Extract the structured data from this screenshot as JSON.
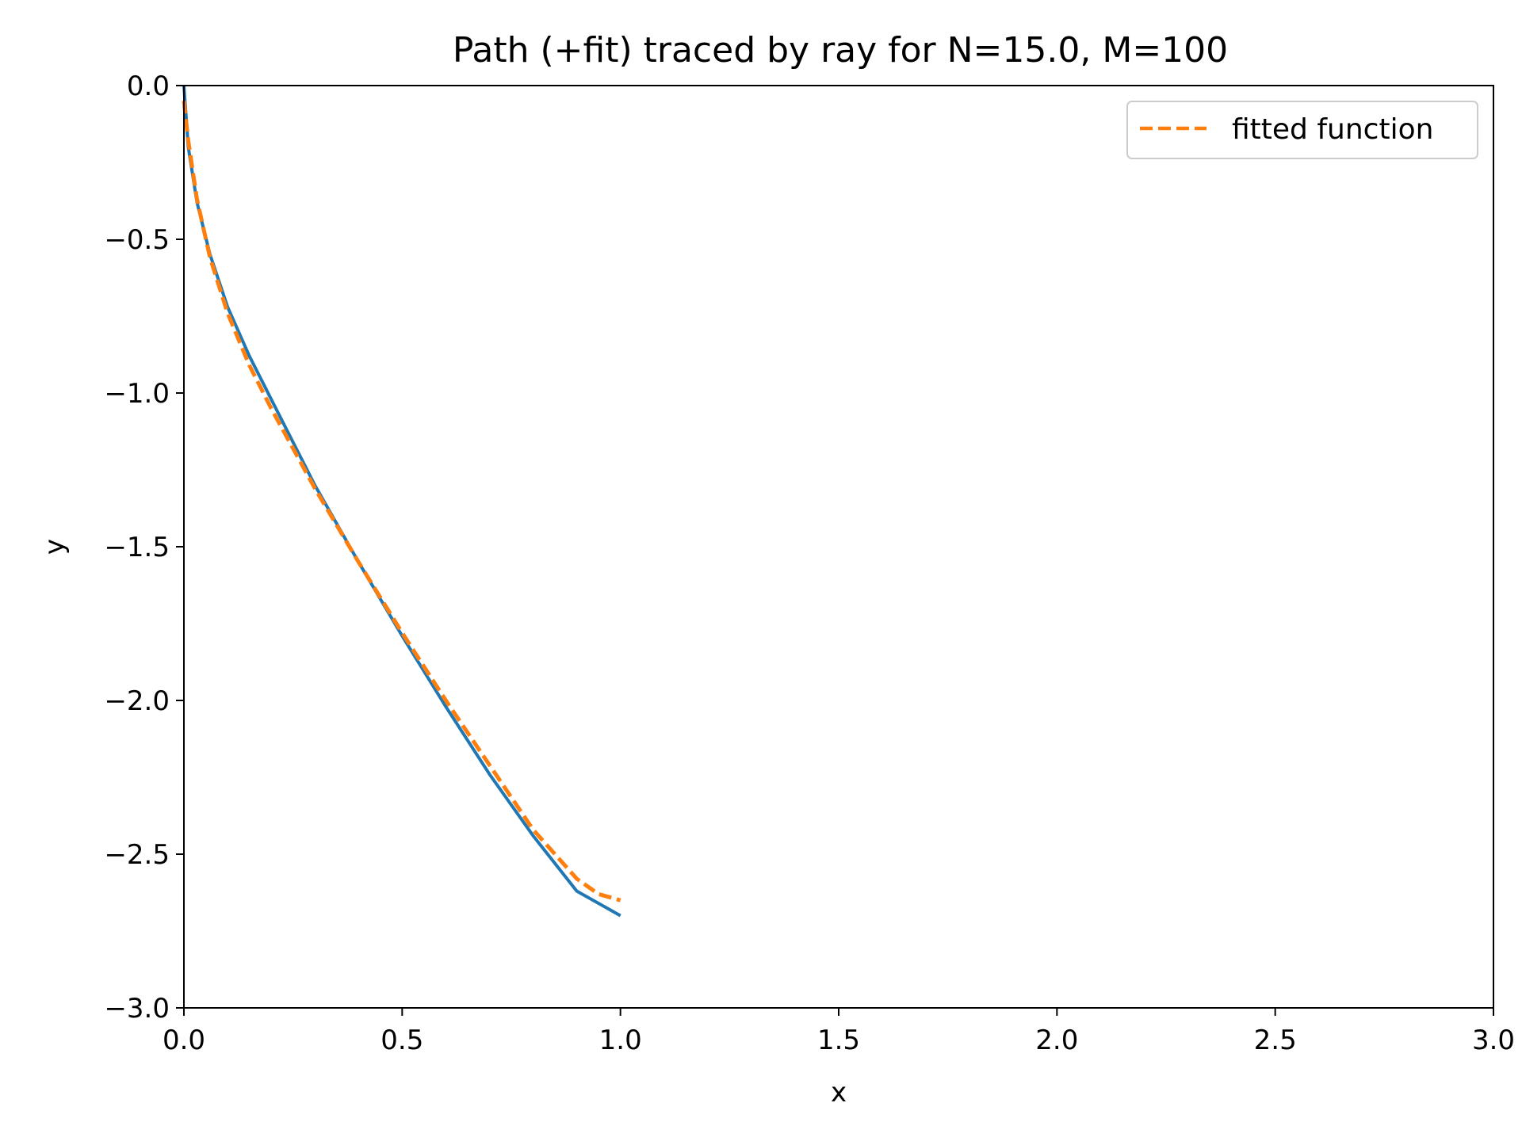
{
  "chart_data": {
    "type": "line",
    "title": "Path (+fit) traced by ray for N=15.0, M=100",
    "xlabel": "x",
    "ylabel": "y",
    "xlim": [
      0.0,
      3.0
    ],
    "ylim": [
      -3.0,
      0.0
    ],
    "x_ticks": [
      "0.0",
      "0.5",
      "1.0",
      "1.5",
      "2.0",
      "2.5",
      "3.0"
    ],
    "y_ticks": [
      "0.0",
      "−0.5",
      "−1.0",
      "−1.5",
      "−2.0",
      "−2.5",
      "−3.0"
    ],
    "grid": false,
    "legend_position": "top-right",
    "series": [
      {
        "color": "#1f77b4",
        "style": "solid",
        "x": [
          0.0,
          0.01,
          0.03,
          0.06,
          0.1,
          0.15,
          0.2,
          0.3,
          0.4,
          0.5,
          0.6,
          0.7,
          0.8,
          0.9,
          1.0
        ],
        "y": [
          0.0,
          -0.2,
          -0.38,
          -0.55,
          -0.72,
          -0.88,
          -1.02,
          -1.3,
          -1.55,
          -1.79,
          -2.02,
          -2.24,
          -2.44,
          -2.62,
          -2.7
        ]
      },
      {
        "name": "fitted function",
        "color": "#ff7f0e",
        "style": "dashed",
        "x": [
          0.0,
          0.01,
          0.03,
          0.06,
          0.1,
          0.15,
          0.2,
          0.3,
          0.4,
          0.5,
          0.6,
          0.7,
          0.8,
          0.9,
          0.95,
          1.0
        ],
        "y": [
          -0.05,
          -0.18,
          -0.37,
          -0.56,
          -0.74,
          -0.91,
          -1.05,
          -1.31,
          -1.55,
          -1.78,
          -2.0,
          -2.21,
          -2.42,
          -2.58,
          -2.63,
          -2.65
        ]
      }
    ]
  }
}
